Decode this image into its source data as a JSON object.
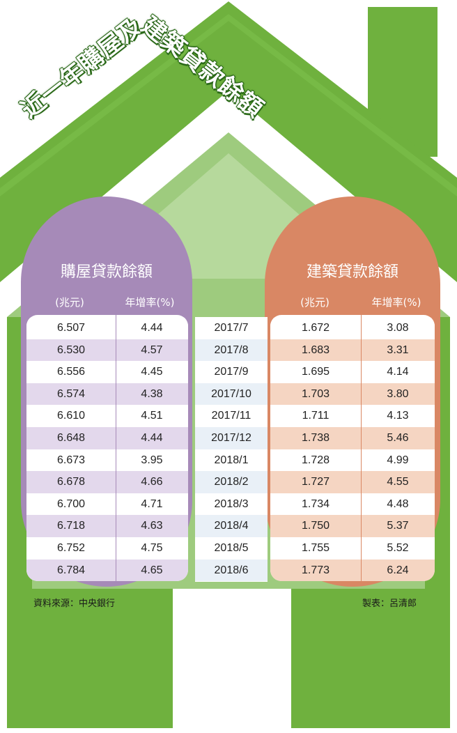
{
  "title_part1": "近一年購屋及",
  "title_part2": "建築貸款餘額",
  "left_panel": {
    "title": "購屋貸款餘額",
    "col1_header": "(兆元)",
    "col2_header": "年增率(%)"
  },
  "right_panel": {
    "title": "建築貸款餘額",
    "col1_header": "(兆元)",
    "col2_header": "年增率(%)"
  },
  "source": "資料來源：中央銀行",
  "credit": "製表：呂清郎",
  "colors": {
    "house_dark_green": "#6fb13e",
    "house_light_green": "#9ecb7e",
    "purple": "#a68ab8",
    "purple_row": "#e3d8ec",
    "orange": "#d98764",
    "orange_row": "#f5d5c2",
    "mid_row": "#e9f0f7"
  },
  "chart_data": {
    "type": "table",
    "categories": [
      "2017/7",
      "2017/8",
      "2017/9",
      "2017/10",
      "2017/11",
      "2017/12",
      "2018/1",
      "2018/2",
      "2018/3",
      "2018/4",
      "2018/5",
      "2018/6"
    ],
    "series": [
      {
        "name": "購屋貸款餘額",
        "unit": "兆元",
        "values": [
          "6.507",
          "6.530",
          "6.556",
          "6.574",
          "6.610",
          "6.648",
          "6.673",
          "6.678",
          "6.700",
          "6.718",
          "6.752",
          "6.784"
        ]
      },
      {
        "name": "購屋貸款餘額年增率",
        "unit": "%",
        "values": [
          "4.44",
          "4.57",
          "4.45",
          "4.38",
          "4.51",
          "4.44",
          "3.95",
          "4.66",
          "4.71",
          "4.63",
          "4.75",
          "4.65"
        ]
      },
      {
        "name": "建築貸款餘額",
        "unit": "兆元",
        "values": [
          "1.672",
          "1.683",
          "1.695",
          "1.703",
          "1.711",
          "1.738",
          "1.728",
          "1.727",
          "1.734",
          "1.750",
          "1.755",
          "1.773"
        ]
      },
      {
        "name": "建築貸款餘額年增率",
        "unit": "%",
        "values": [
          "3.08",
          "3.31",
          "4.14",
          "3.80",
          "4.13",
          "5.46",
          "4.99",
          "4.55",
          "4.48",
          "5.37",
          "5.52",
          "6.24"
        ]
      }
    ]
  }
}
